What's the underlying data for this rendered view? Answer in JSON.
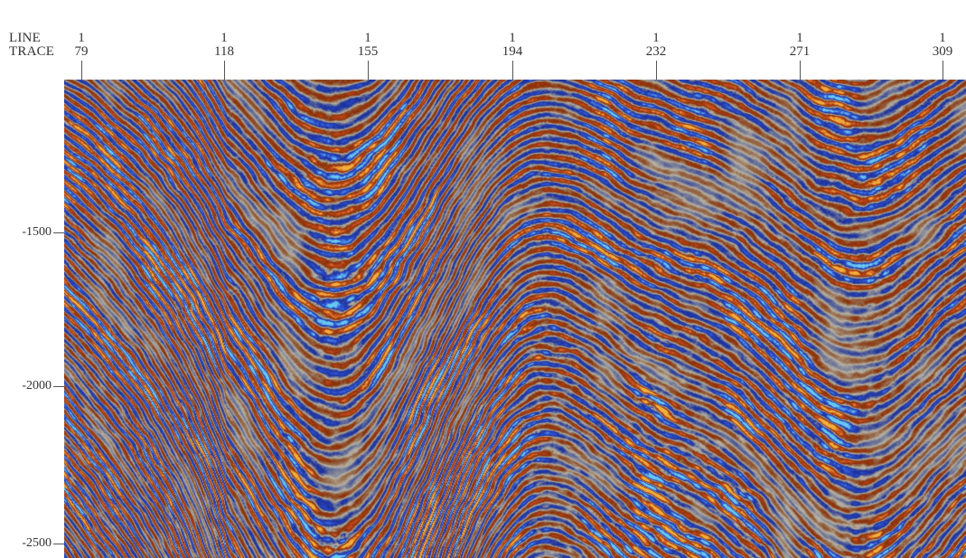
{
  "header": {
    "line_label": "LINE",
    "trace_label": "TRACE"
  },
  "top_axis": [
    {
      "line": "1",
      "trace": "79"
    },
    {
      "line": "1",
      "trace": "118"
    },
    {
      "line": "1",
      "trace": "155"
    },
    {
      "line": "1",
      "trace": "194"
    },
    {
      "line": "1",
      "trace": "232"
    },
    {
      "line": "1",
      "trace": "271"
    },
    {
      "line": "1",
      "trace": "309"
    }
  ],
  "left_axis": [
    "-1500",
    "-2000",
    "-2500"
  ],
  "colors": {
    "background": "#ffffff",
    "section_gray": "#b9b4a6",
    "trough_dark": "#8a2f08",
    "trough_mid": "#c0461a",
    "trough_light": "#f0b03a",
    "peak_dark": "#1a2f9c",
    "peak_mid": "#2f55d4",
    "peak_light": "#68c8ee"
  },
  "image": {
    "type": "seismic-section",
    "colormap": "red-white-blue"
  }
}
